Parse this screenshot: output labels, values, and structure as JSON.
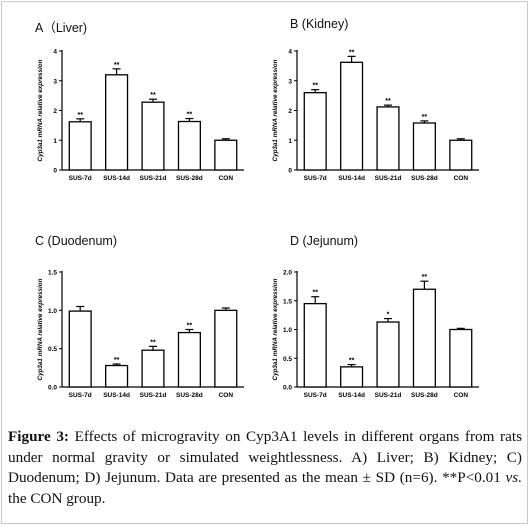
{
  "chart_data": [
    {
      "type": "bar",
      "panel_title": "A（Liver)",
      "ylabel": "Cyp3a1 mRNA relative expression",
      "categories": [
        "SUS-7d",
        "SUS-14d",
        "SUS-21d",
        "SUS-28d",
        "CON"
      ],
      "values": [
        1.62,
        3.2,
        2.28,
        1.63,
        1.0
      ],
      "errors": [
        0.1,
        0.2,
        0.1,
        0.1,
        0.05
      ],
      "sig_labels": [
        "**",
        "**",
        "**",
        "**",
        ""
      ],
      "ylim": [
        0,
        4
      ],
      "yticks": [
        "0",
        "1",
        "2",
        "3",
        "4"
      ],
      "ytick_values": [
        0,
        1,
        2,
        3,
        4
      ],
      "grid": false
    },
    {
      "type": "bar",
      "panel_title": "B (Kidney)",
      "ylabel": "Cyp3a1 mRNA relative expression",
      "categories": [
        "SUS-7d",
        "SUS-14d",
        "SUS-21d",
        "SUS-28d",
        "CON"
      ],
      "values": [
        2.6,
        3.62,
        2.12,
        1.58,
        1.0
      ],
      "errors": [
        0.1,
        0.2,
        0.06,
        0.07,
        0.05
      ],
      "sig_labels": [
        "**",
        "**",
        "**",
        "**",
        ""
      ],
      "ylim": [
        0,
        4
      ],
      "yticks": [
        "0",
        "1",
        "2",
        "3",
        "4"
      ],
      "ytick_values": [
        0,
        1,
        2,
        3,
        4
      ],
      "grid": false
    },
    {
      "type": "bar",
      "panel_title": "C (Duodenum)",
      "ylabel": "Cyp3a1 mRNA relative expression",
      "categories": [
        "SUS-7d",
        "SUS-14d",
        "SUS-21d",
        "SUS-28d",
        "CON"
      ],
      "values": [
        0.99,
        0.28,
        0.48,
        0.71,
        1.0
      ],
      "errors": [
        0.06,
        0.02,
        0.05,
        0.04,
        0.03
      ],
      "sig_labels": [
        "",
        "**",
        "**",
        "**",
        ""
      ],
      "ylim": [
        0,
        1.5
      ],
      "yticks": [
        "0.0",
        "0.5",
        "1.0",
        "1.5"
      ],
      "ytick_values": [
        0,
        0.5,
        1.0,
        1.5
      ],
      "grid": false
    },
    {
      "type": "bar",
      "panel_title": "D (Jejunum)",
      "ylabel": "Cyp3a1 mRNA relative expression",
      "categories": [
        "SUS-7d",
        "SUS-14d",
        "SUS-21d",
        "SUS-28d",
        "CON"
      ],
      "values": [
        1.45,
        0.35,
        1.13,
        1.7,
        1.0
      ],
      "errors": [
        0.12,
        0.04,
        0.06,
        0.14,
        0.02
      ],
      "sig_labels": [
        "**",
        "**",
        "*",
        "**",
        ""
      ],
      "ylim": [
        0,
        2.0
      ],
      "yticks": [
        "0.0",
        "0.5",
        "1.0",
        "1.5",
        "2.0"
      ],
      "ytick_values": [
        0,
        0.5,
        1.0,
        1.5,
        2.0
      ],
      "grid": false
    }
  ],
  "caption": {
    "label": "Figure 3:",
    "text_1": " Effects of microgravity on Cyp3A1 levels in different organs from rats under normal gravity or simulated weightlessness. A) Liver; B) Kidney; C) Duodenum; D) Jejunum. Data are presented as the mean ± SD (n=6). **P<0.01 ",
    "vs": "vs.",
    "text_2": " the CON group."
  }
}
